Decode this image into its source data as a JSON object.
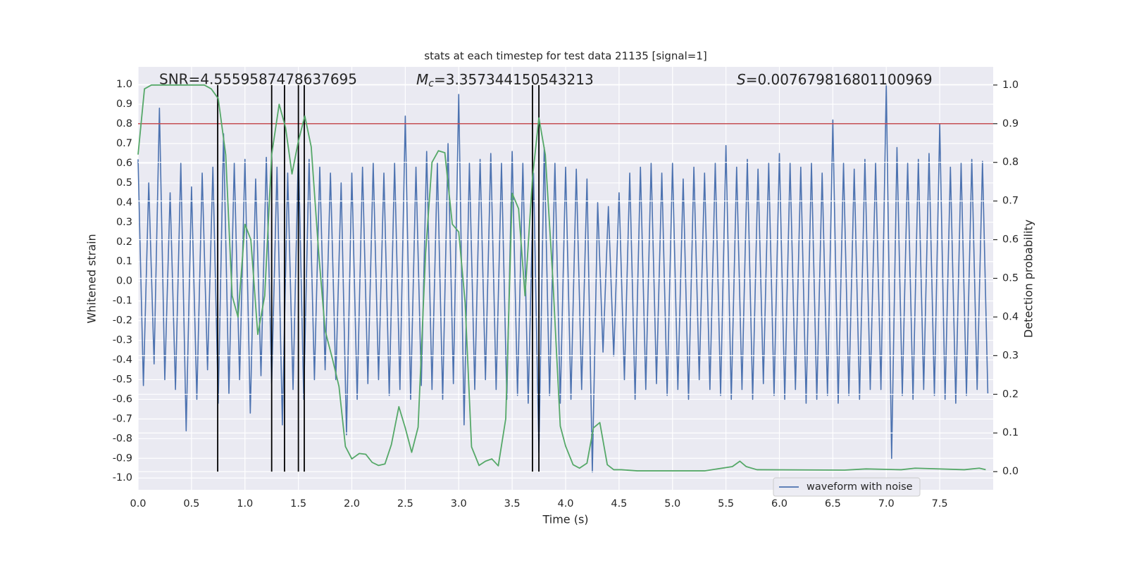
{
  "chart_data": {
    "type": "line",
    "title": "stats at each timestep for test data 21135 [signal=1]",
    "xlabel": "Time (s)",
    "ylabel": "Whitened strain",
    "y2label": "Detection probability",
    "xlim": [
      0,
      8
    ],
    "ylim": [
      -1.06,
      1.09
    ],
    "y2lim": [
      -0.047,
      1.047
    ],
    "grid": true,
    "legend": "lower right",
    "xticks": [
      {
        "value": 0,
        "label": "0.0"
      },
      0.5,
      {
        "value": 1,
        "label": "1.0"
      },
      1.5,
      {
        "value": 2,
        "label": "2.0"
      },
      2.5,
      {
        "value": 3,
        "label": "3.0"
      },
      3.5,
      {
        "value": 4,
        "label": "4.0"
      },
      4.5,
      {
        "value": 5,
        "label": "5.0"
      },
      5.5,
      {
        "value": 6,
        "label": "6.0"
      },
      6.5,
      {
        "value": 7,
        "label": "7.0"
      },
      7.5
    ],
    "yticks": [
      {
        "value": -1,
        "label": "-1.0"
      },
      -0.9,
      -0.8,
      -0.7,
      -0.6,
      -0.5,
      -0.4,
      -0.3,
      -0.2,
      -0.1,
      {
        "value": 0,
        "label": "0.0"
      },
      0.1,
      0.2,
      0.3,
      0.4,
      0.5,
      0.6,
      0.7,
      0.8,
      0.9,
      {
        "value": 1,
        "label": "1.0"
      }
    ],
    "y2ticks": [
      {
        "value": 0,
        "label": "0.0"
      },
      0.1,
      0.2,
      0.3,
      0.4,
      0.5,
      0.6,
      0.7,
      0.8,
      0.9,
      {
        "value": 1,
        "label": "1.0"
      }
    ],
    "series": [
      {
        "name": "waveform with noise",
        "color": "#4c72b0",
        "x": [
          0,
          0.05,
          0.1,
          0.15,
          0.2,
          0.25,
          0.3,
          0.35,
          0.4,
          0.45,
          0.5,
          0.55,
          0.6,
          0.65,
          0.7,
          0.75,
          0.8,
          0.85,
          0.9,
          0.95,
          1,
          1.05,
          1.1,
          1.15,
          1.2,
          1.25,
          1.3,
          1.35,
          1.4,
          1.45,
          1.5,
          1.55,
          1.6,
          1.65,
          1.7,
          1.75,
          1.8,
          1.85,
          1.9,
          1.95,
          2,
          2.05,
          2.1,
          2.15,
          2.2,
          2.25,
          2.3,
          2.35,
          2.4,
          2.45,
          2.5,
          2.55,
          2.6,
          2.65,
          2.7,
          2.75,
          2.8,
          2.85,
          2.9,
          2.95,
          3,
          3.05,
          3.1,
          3.15,
          3.2,
          3.25,
          3.3,
          3.35,
          3.4,
          3.45,
          3.5,
          3.55,
          3.6,
          3.65,
          3.7,
          3.75,
          3.8,
          3.85,
          3.9,
          3.95,
          4,
          4.05,
          4.1,
          4.15,
          4.2,
          4.25,
          4.3,
          4.35,
          4.4,
          4.45,
          4.5,
          4.55,
          4.6,
          4.65,
          4.7,
          4.75,
          4.8,
          4.85,
          4.9,
          4.95,
          5,
          5.05,
          5.1,
          5.15,
          5.2,
          5.25,
          5.3,
          5.35,
          5.4,
          5.45,
          5.5,
          5.55,
          5.6,
          5.65,
          5.7,
          5.75,
          5.8,
          5.85,
          5.9,
          5.95,
          6,
          6.05,
          6.1,
          6.15,
          6.2,
          6.25,
          6.3,
          6.35,
          6.4,
          6.45,
          6.5,
          6.55,
          6.6,
          6.65,
          6.7,
          6.75,
          6.8,
          6.85,
          6.9,
          6.95,
          7,
          7.05,
          7.1,
          7.15,
          7.2,
          7.25,
          7.3,
          7.35,
          7.4,
          7.45,
          7.5,
          7.55,
          7.6,
          7.65,
          7.7,
          7.75,
          7.8,
          7.85,
          7.9,
          7.95
        ],
        "values": [
          0.62,
          -0.53,
          0.5,
          -0.42,
          0.88,
          -0.5,
          0.45,
          -0.55,
          0.6,
          -0.76,
          0.48,
          -0.6,
          0.55,
          -0.45,
          0.58,
          -0.62,
          0.75,
          -0.57,
          0.6,
          -0.5,
          0.62,
          -0.67,
          0.52,
          -0.48,
          0.63,
          -0.52,
          0.58,
          -0.73,
          0.55,
          -0.55,
          0.67,
          -0.6,
          0.62,
          -0.5,
          0.58,
          -0.45,
          0.55,
          -0.5,
          0.5,
          -0.78,
          0.55,
          -0.6,
          0.58,
          -0.52,
          0.6,
          -0.5,
          0.55,
          -0.58,
          0.6,
          -0.55,
          0.84,
          -0.6,
          0.58,
          -0.53,
          0.66,
          -0.55,
          0.6,
          -0.6,
          0.7,
          -0.52,
          0.95,
          -0.73,
          0.6,
          -0.55,
          0.62,
          -0.5,
          0.65,
          -0.55,
          0.6,
          -0.6,
          0.66,
          -0.58,
          0.6,
          -0.62,
          0.55,
          -0.87,
          0.68,
          -0.58,
          0.6,
          -0.62,
          0.58,
          -0.6,
          0.57,
          -0.55,
          0.52,
          -0.97,
          0.4,
          -0.36,
          0.38,
          -0.38,
          0.45,
          -0.5,
          0.55,
          -0.6,
          0.58,
          -0.55,
          0.6,
          -0.52,
          0.55,
          -0.58,
          0.6,
          -0.55,
          0.52,
          -0.6,
          0.58,
          -0.5,
          0.55,
          -0.55,
          0.6,
          -0.58,
          0.69,
          -0.6,
          0.58,
          -0.55,
          0.62,
          -0.6,
          0.57,
          -0.52,
          0.6,
          -0.58,
          0.65,
          -0.6,
          0.6,
          -0.55,
          0.58,
          -0.62,
          0.6,
          -0.6,
          0.55,
          -0.58,
          0.82,
          -0.62,
          0.6,
          -0.58,
          0.57,
          -0.6,
          0.62,
          -0.55,
          0.6,
          -0.55,
          1.0,
          -0.9,
          0.68,
          -0.58,
          0.6,
          -0.6,
          0.62,
          -0.55,
          0.65,
          -0.58,
          0.8,
          -0.6,
          0.58,
          -0.62,
          0.6,
          -0.58,
          0.62,
          -0.55,
          0.61,
          -0.57
        ]
      },
      {
        "color": "#55a868",
        "axis": "y2",
        "x": [
          0,
          0.06,
          0.125,
          0.62,
          0.685,
          0.75,
          0.82,
          0.88,
          0.935,
          1.0,
          1.055,
          1.12,
          1.185,
          1.25,
          1.32,
          1.38,
          1.44,
          1.5,
          1.56,
          1.62,
          1.69,
          1.75,
          1.82,
          1.88,
          1.94,
          2.0,
          2.07,
          2.13,
          2.19,
          2.25,
          2.31,
          2.37,
          2.44,
          2.5,
          2.56,
          2.62,
          2.69,
          2.75,
          2.81,
          2.87,
          2.94,
          3.0,
          3.06,
          3.12,
          3.19,
          3.25,
          3.31,
          3.37,
          3.44,
          3.5,
          3.56,
          3.62,
          3.69,
          3.75,
          3.81,
          3.88,
          3.95,
          4.0,
          4.07,
          4.13,
          4.2,
          4.26,
          4.32,
          4.39,
          4.45,
          4.52,
          4.67,
          5.3,
          5.56,
          5.63,
          5.69,
          5.79,
          6.61,
          6.81,
          7.14,
          7.27,
          7.73,
          7.87,
          7.93
        ],
        "values": [
          0.82,
          0.99,
          1.0,
          1.0,
          0.99,
          0.965,
          0.82,
          0.455,
          0.4,
          0.64,
          0.6,
          0.355,
          0.455,
          0.82,
          0.95,
          0.89,
          0.77,
          0.855,
          0.92,
          0.84,
          0.565,
          0.365,
          0.29,
          0.22,
          0.065,
          0.033,
          0.047,
          0.045,
          0.024,
          0.016,
          0.02,
          0.07,
          0.168,
          0.113,
          0.05,
          0.115,
          0.565,
          0.8,
          0.83,
          0.825,
          0.64,
          0.62,
          0.437,
          0.064,
          0.016,
          0.027,
          0.033,
          0.015,
          0.137,
          0.72,
          0.68,
          0.455,
          0.76,
          0.915,
          0.82,
          0.5,
          0.118,
          0.066,
          0.018,
          0.009,
          0.022,
          0.113,
          0.127,
          0.018,
          0.005,
          0.005,
          0.002,
          0.002,
          0.013,
          0.027,
          0.013,
          0.005,
          0.004,
          0.007,
          0.005,
          0.009,
          0.005,
          0.009,
          0.005
        ]
      }
    ],
    "vlines": {
      "x": [
        0.745,
        1.25,
        1.37,
        1.5,
        1.555,
        3.69,
        3.75
      ],
      "ymin": 0,
      "ymax": 1,
      "axis": "y2",
      "color": "#000000"
    },
    "threshold": {
      "value": 0.9,
      "axis": "y2",
      "color": "#c44e52"
    },
    "annotations": [
      {
        "text": "SNR=4.5559587478637695"
      },
      {
        "symbol": "M",
        "subscript": "c",
        "text": "=3.357344150543213"
      },
      {
        "symbol": "S",
        "text": "=0.007679816801100969"
      }
    ]
  }
}
